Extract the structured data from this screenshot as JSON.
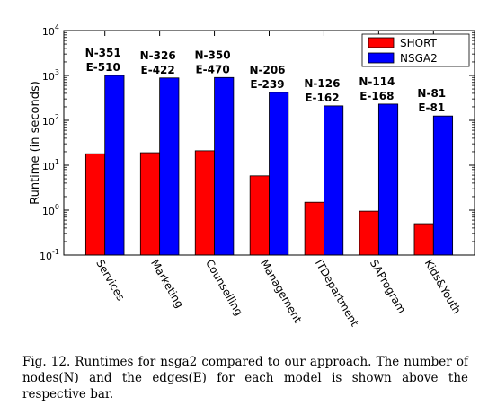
{
  "chart_data": {
    "type": "bar",
    "ylabel": "Runtime (in seconds)",
    "yscale": "log",
    "ylim": [
      0.1,
      10000
    ],
    "yticks": [
      {
        "value": 10000,
        "base": "10",
        "exp": "4"
      },
      {
        "value": 1000,
        "base": "10",
        "exp": "3"
      },
      {
        "value": 100,
        "base": "10",
        "exp": "2"
      },
      {
        "value": 10,
        "base": "10",
        "exp": "1"
      },
      {
        "value": 1,
        "base": "10",
        "exp": "0"
      },
      {
        "value": 0.1,
        "base": "10",
        "exp": "-1"
      }
    ],
    "categories": [
      "Services",
      "Marketing",
      "Counselling",
      "Management",
      "ITDepartment",
      "SAProgram",
      "Kids&Youth"
    ],
    "series": [
      {
        "name": "SHORT",
        "color": "#ff0000",
        "values": [
          18,
          19,
          21,
          5.8,
          1.5,
          0.95,
          0.5
        ]
      },
      {
        "name": "NSGA2",
        "color": "#0000ff",
        "values": [
          1000,
          880,
          900,
          420,
          210,
          230,
          125
        ]
      }
    ],
    "annotations": [
      {
        "n": "N-351",
        "e": "E-510"
      },
      {
        "n": "N-326",
        "e": "E-422"
      },
      {
        "n": "N-350",
        "e": "E-470"
      },
      {
        "n": "N-206",
        "e": "E-239"
      },
      {
        "n": "N-126",
        "e": "E-162"
      },
      {
        "n": "N-114",
        "e": "E-168"
      },
      {
        "n": "N-81",
        "e": "E-81"
      }
    ],
    "legend_position": "top-right"
  },
  "caption": "Fig. 12.  Runtimes for nsga2 compared to our approach. The number of nodes(N) and the edges(E) for each model is shown above the respective bar."
}
